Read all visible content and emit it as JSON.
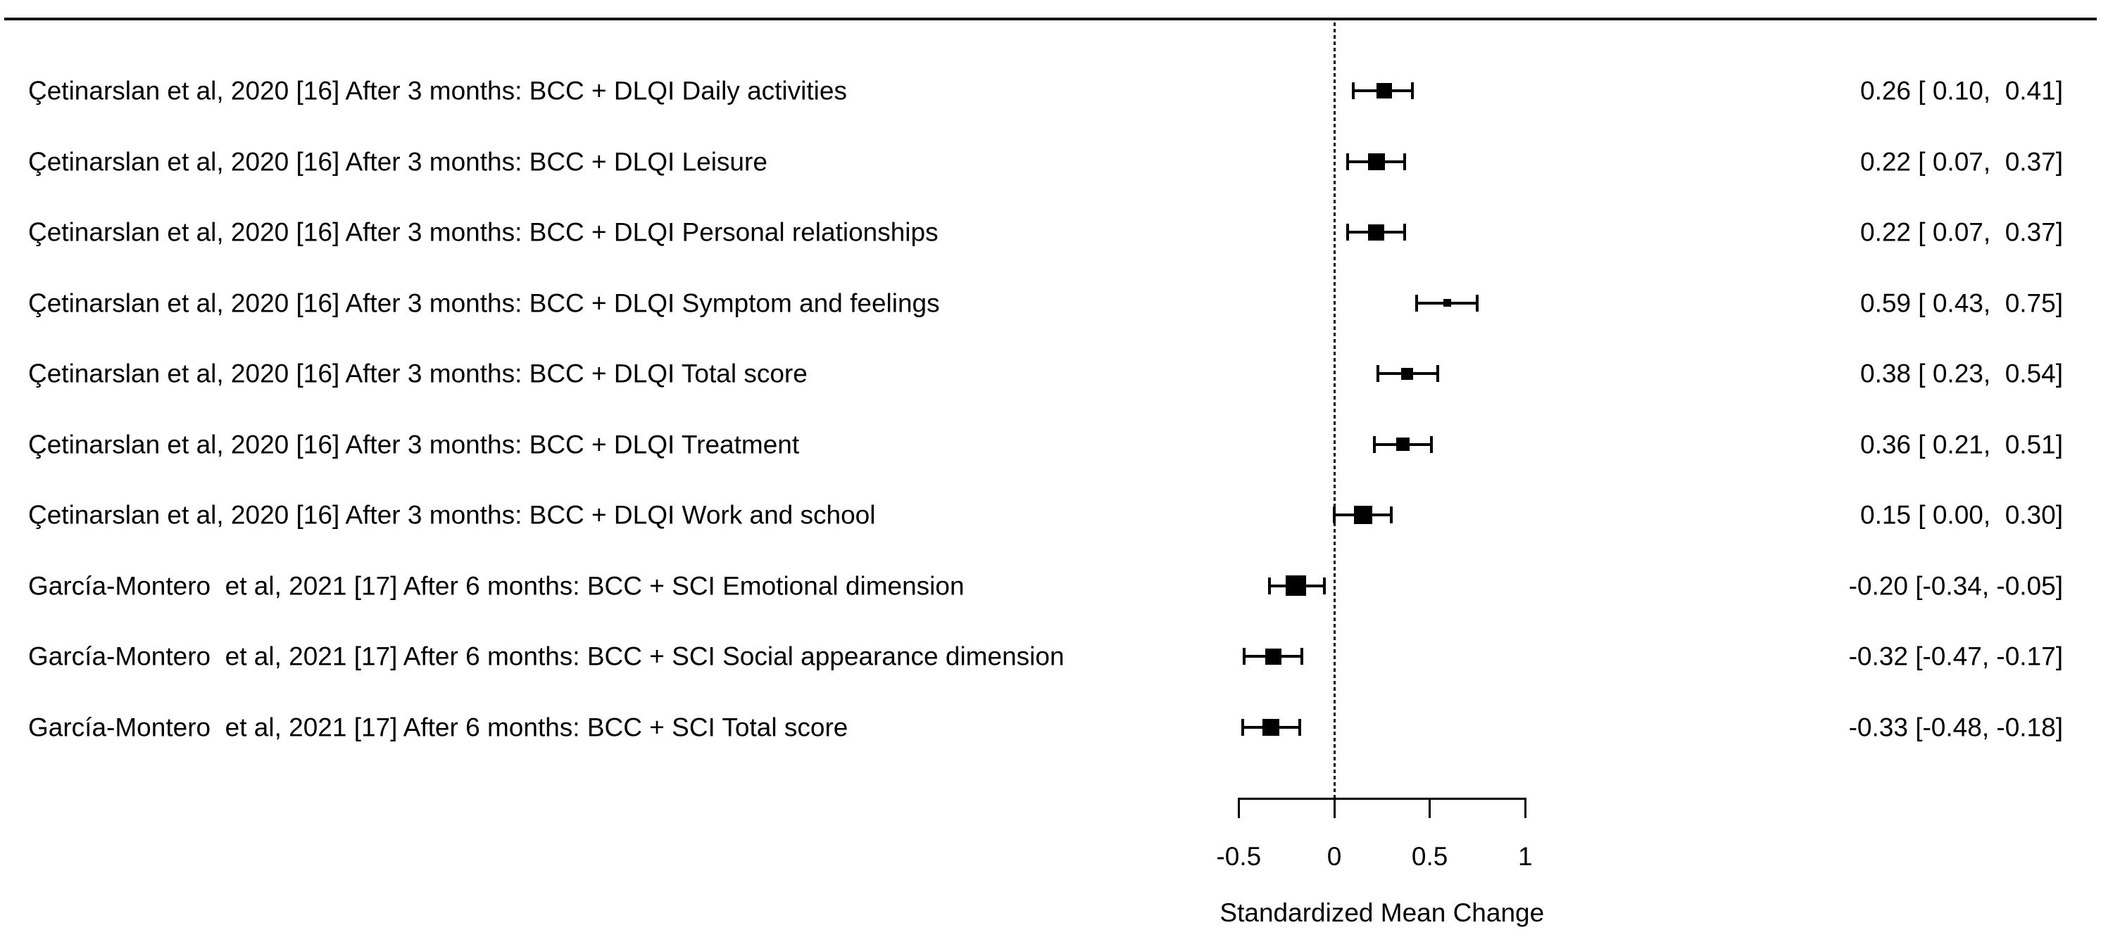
{
  "figure": {
    "kind": "forest plot",
    "background_color": "#ffffff",
    "line_color": "#000000",
    "text_color": "#000000"
  },
  "chart_data": {
    "type": "scatter",
    "subtype": "forest-plot",
    "title": "",
    "xlabel": "Standardized Mean Change",
    "ylabel": "",
    "xlim": [
      -0.5,
      1
    ],
    "grid": false,
    "reference_line_x": 0,
    "x_ticks": [
      {
        "value": -0.5,
        "label": "-0.5"
      },
      {
        "value": 0,
        "label": "0"
      },
      {
        "value": 0.5,
        "label": "0.5"
      },
      {
        "value": 1,
        "label": "1"
      }
    ],
    "rows": [
      {
        "label": "Çetinarslan et al, 2020 [16] After 3 months: BCC + DLQI Daily activities",
        "estimate": 0.26,
        "ci_low": 0.1,
        "ci_high": 0.41,
        "value_text": "0.26 [ 0.10,  0.41]",
        "marker_px": 22
      },
      {
        "label": "Çetinarslan et al, 2020 [16] After 3 months: BCC + DLQI Leisure",
        "estimate": 0.22,
        "ci_low": 0.07,
        "ci_high": 0.37,
        "value_text": "0.22 [ 0.07,  0.37]",
        "marker_px": 24
      },
      {
        "label": "Çetinarslan et al, 2020 [16] After 3 months: BCC + DLQI Personal relationships",
        "estimate": 0.22,
        "ci_low": 0.07,
        "ci_high": 0.37,
        "value_text": "0.22 [ 0.07,  0.37]",
        "marker_px": 23
      },
      {
        "label": "Çetinarslan et al, 2020 [16] After 3 months: BCC + DLQI Symptom and feelings",
        "estimate": 0.59,
        "ci_low": 0.43,
        "ci_high": 0.75,
        "value_text": "0.59 [ 0.43,  0.75]",
        "marker_px": 11
      },
      {
        "label": "Çetinarslan et al, 2020 [16] After 3 months: BCC + DLQI Total score",
        "estimate": 0.38,
        "ci_low": 0.23,
        "ci_high": 0.54,
        "value_text": "0.38 [ 0.23,  0.54]",
        "marker_px": 17
      },
      {
        "label": "Çetinarslan et al, 2020 [16] After 3 months: BCC + DLQI Treatment",
        "estimate": 0.36,
        "ci_low": 0.21,
        "ci_high": 0.51,
        "value_text": "0.36 [ 0.21,  0.51]",
        "marker_px": 19
      },
      {
        "label": "Çetinarslan et al, 2020 [16] After 3 months: BCC + DLQI Work and school",
        "estimate": 0.15,
        "ci_low": 0.0,
        "ci_high": 0.3,
        "value_text": "0.15 [ 0.00,  0.30]",
        "marker_px": 26
      },
      {
        "label": "García-Montero  et al, 2021 [17] After 6 months: BCC + SCI Emotional dimension",
        "estimate": -0.2,
        "ci_low": -0.34,
        "ci_high": -0.05,
        "value_text": "-0.20 [-0.34, -0.05]",
        "marker_px": 29
      },
      {
        "label": "García-Montero  et al, 2021 [17] After 6 months: BCC + SCI Social appearance dimension",
        "estimate": -0.32,
        "ci_low": -0.47,
        "ci_high": -0.17,
        "value_text": "-0.32 [-0.47, -0.17]",
        "marker_px": 23
      },
      {
        "label": "García-Montero  et al, 2021 [17] After 6 months: BCC + SCI Total score",
        "estimate": -0.33,
        "ci_low": -0.48,
        "ci_high": -0.18,
        "value_text": "-0.33 [-0.48, -0.18]",
        "marker_px": 24
      }
    ]
  }
}
